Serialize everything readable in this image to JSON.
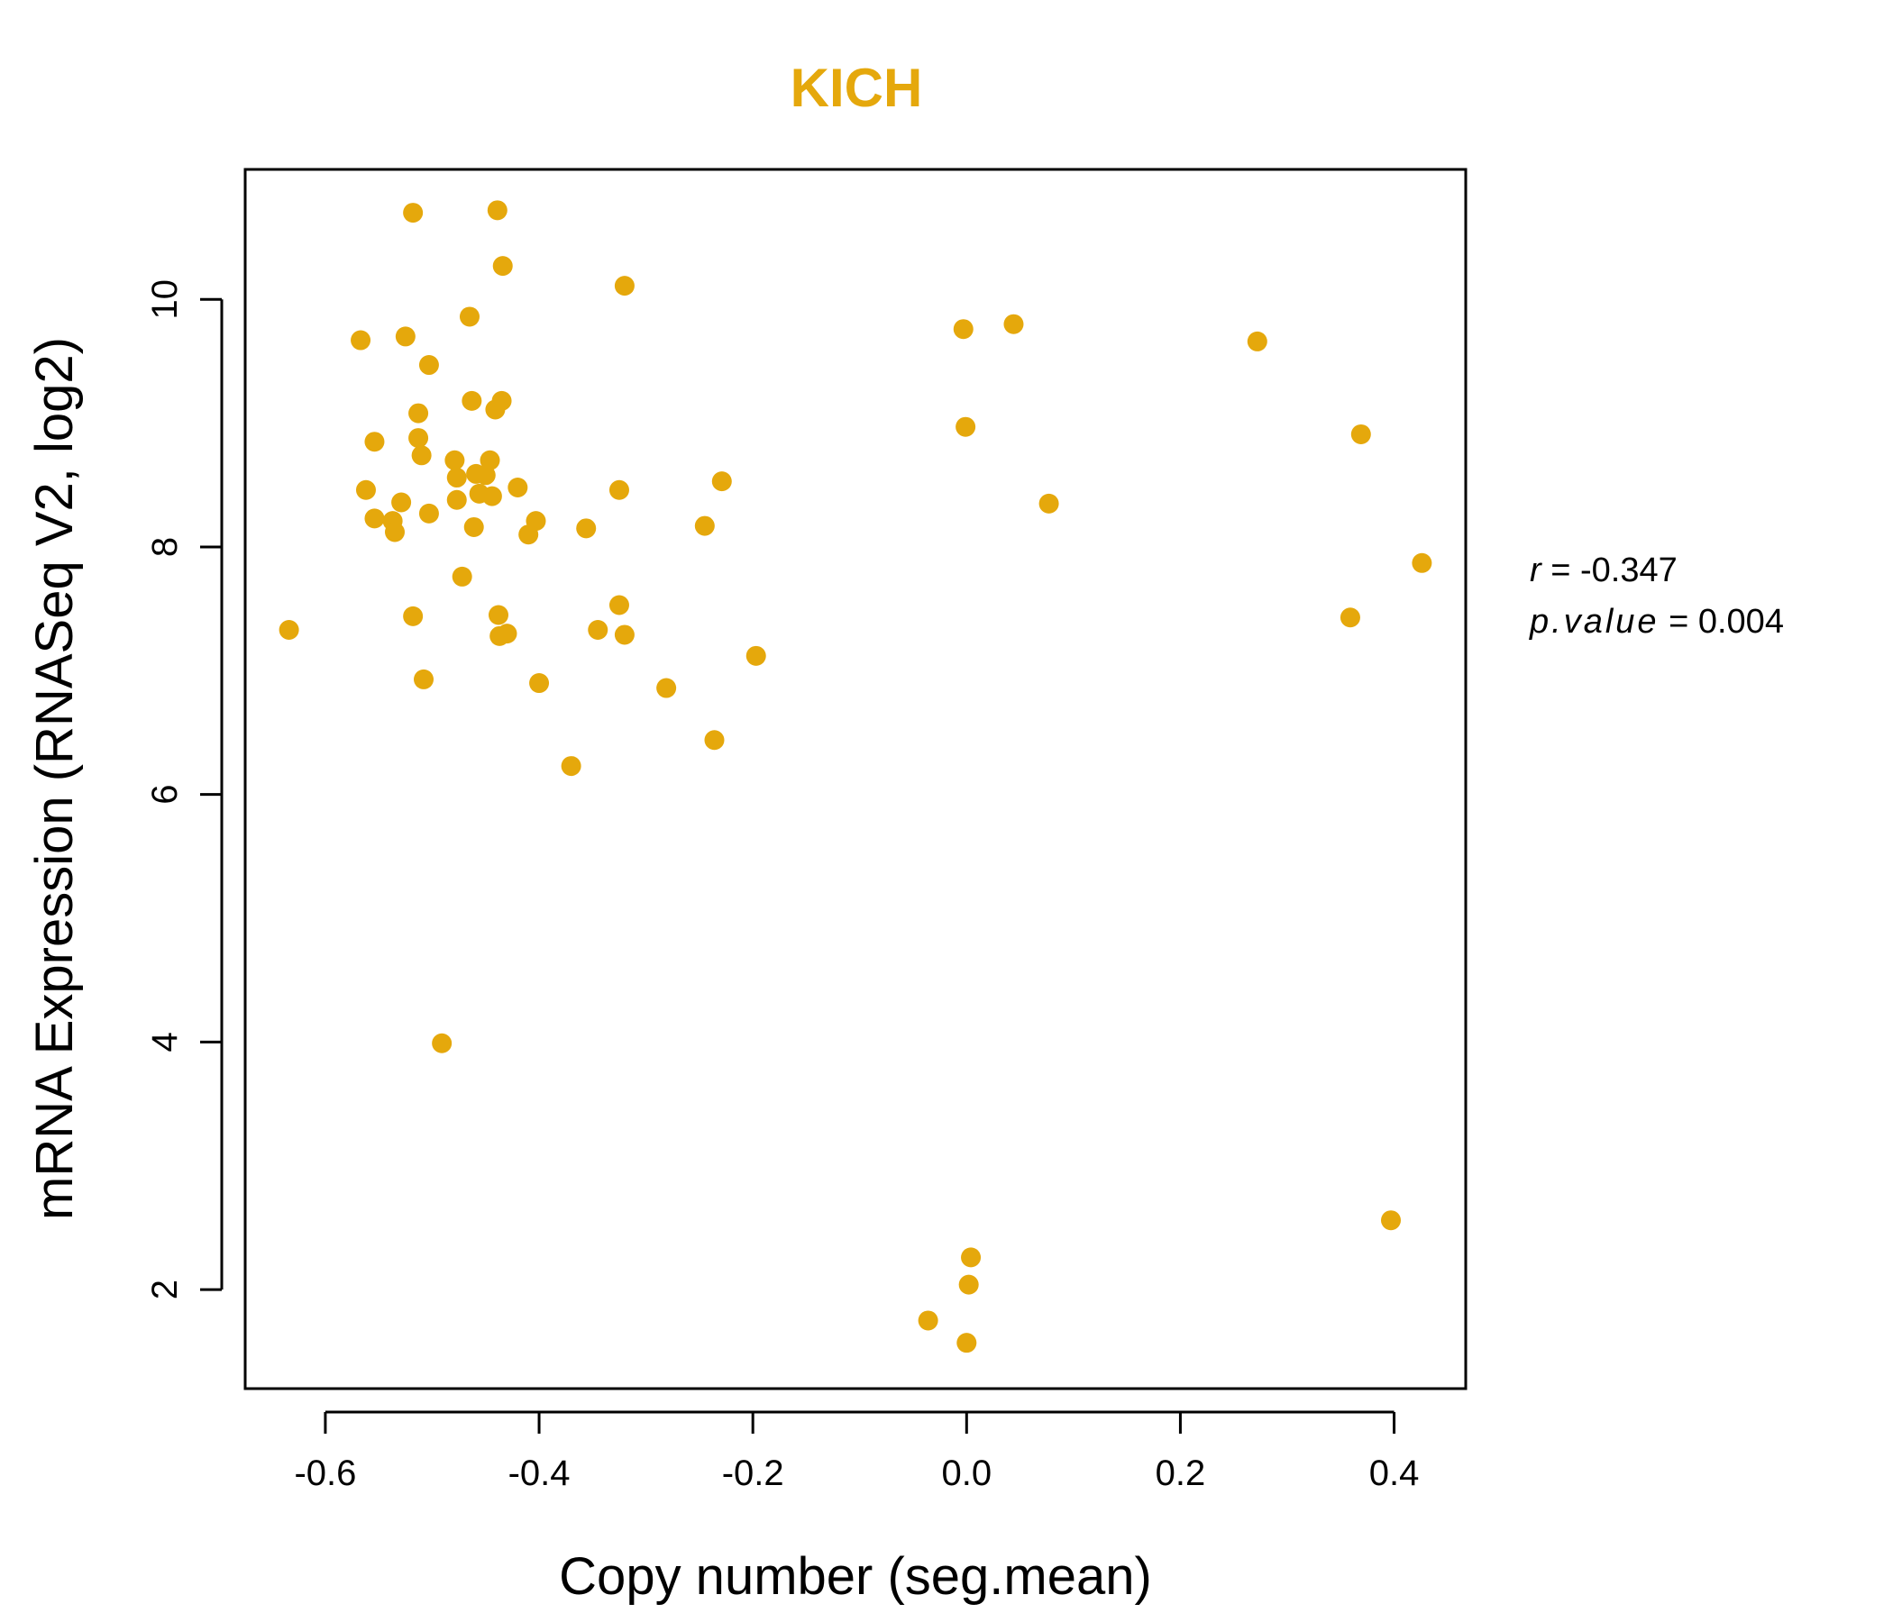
{
  "chart_data": {
    "type": "scatter",
    "title": "KICH",
    "xlabel": "Copy number (seg.mean)",
    "ylabel": "mRNA Expression (RNASeq V2, log2)",
    "xlim": [
      -0.675,
      0.467
    ],
    "ylim": [
      1.2,
      11.05
    ],
    "xticks": [
      -0.6,
      -0.4,
      -0.2,
      0.0,
      0.2,
      0.4
    ],
    "xtick_labels": [
      "-0.6",
      "-0.4",
      "-0.2",
      "0.0",
      "0.2",
      "0.4"
    ],
    "yticks": [
      2,
      4,
      6,
      8,
      10
    ],
    "ytick_labels": [
      "2",
      "4",
      "6",
      "8",
      "10"
    ],
    "grid": false,
    "point_color": "#E5A80C",
    "annotations": {
      "r_label": "r",
      "r_value": "-0.347",
      "p_label": "p.value",
      "p_value": "0.004"
    },
    "points": [
      [
        -0.634,
        7.33
      ],
      [
        -0.567,
        9.67
      ],
      [
        -0.562,
        8.46
      ],
      [
        -0.554,
        8.85
      ],
      [
        -0.554,
        8.23
      ],
      [
        -0.537,
        8.21
      ],
      [
        -0.535,
        8.12
      ],
      [
        -0.529,
        8.36
      ],
      [
        -0.525,
        9.7
      ],
      [
        -0.518,
        10.7
      ],
      [
        -0.518,
        7.44
      ],
      [
        -0.513,
        9.08
      ],
      [
        -0.513,
        8.88
      ],
      [
        -0.51,
        8.74
      ],
      [
        -0.508,
        6.93
      ],
      [
        -0.503,
        9.47
      ],
      [
        -0.503,
        8.27
      ],
      [
        -0.491,
        3.99
      ],
      [
        -0.479,
        8.7
      ],
      [
        -0.477,
        8.56
      ],
      [
        -0.477,
        8.38
      ],
      [
        -0.472,
        7.76
      ],
      [
        -0.465,
        9.86
      ],
      [
        -0.463,
        9.18
      ],
      [
        -0.461,
        8.16
      ],
      [
        -0.459,
        8.59
      ],
      [
        -0.456,
        8.43
      ],
      [
        -0.45,
        8.58
      ],
      [
        -0.446,
        8.7
      ],
      [
        -0.444,
        8.41
      ],
      [
        -0.441,
        9.11
      ],
      [
        -0.439,
        10.72
      ],
      [
        -0.438,
        7.45
      ],
      [
        -0.437,
        7.28
      ],
      [
        -0.435,
        9.18
      ],
      [
        -0.434,
        10.27
      ],
      [
        -0.43,
        7.3
      ],
      [
        -0.42,
        8.48
      ],
      [
        -0.41,
        8.1
      ],
      [
        -0.403,
        8.21
      ],
      [
        -0.4,
        6.9
      ],
      [
        -0.37,
        6.23
      ],
      [
        -0.356,
        8.15
      ],
      [
        -0.345,
        7.33
      ],
      [
        -0.325,
        7.53
      ],
      [
        -0.325,
        8.46
      ],
      [
        -0.32,
        7.29
      ],
      [
        -0.32,
        10.11
      ],
      [
        -0.281,
        6.86
      ],
      [
        -0.245,
        8.17
      ],
      [
        -0.236,
        6.44
      ],
      [
        -0.229,
        8.53
      ],
      [
        -0.197,
        7.12
      ],
      [
        -0.036,
        1.75
      ],
      [
        -0.003,
        9.76
      ],
      [
        -0.001,
        8.97
      ],
      [
        0.0,
        1.57
      ],
      [
        0.002,
        2.04
      ],
      [
        0.004,
        2.26
      ],
      [
        0.044,
        9.8
      ],
      [
        0.077,
        8.35
      ],
      [
        0.272,
        9.66
      ],
      [
        0.359,
        7.43
      ],
      [
        0.369,
        8.91
      ],
      [
        0.397,
        2.56
      ],
      [
        0.426,
        7.87
      ]
    ]
  }
}
